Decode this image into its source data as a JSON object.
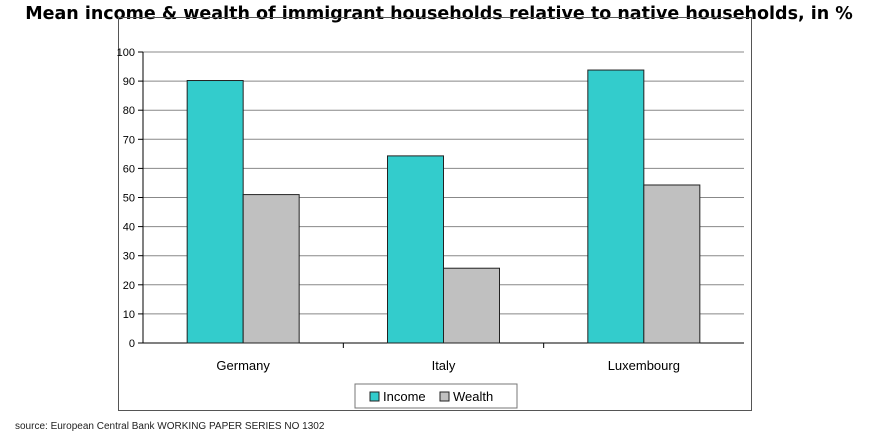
{
  "chart_data": {
    "type": "bar",
    "title": "Mean income & wealth of immigrant households relative to native households, in %",
    "categories": [
      "Germany",
      "Italy",
      "Luxembourg"
    ],
    "series": [
      {
        "name": "Income",
        "values": [
          90.2,
          64.3,
          93.8
        ],
        "color": "#33CCCC"
      },
      {
        "name": "Wealth",
        "values": [
          51.0,
          25.7,
          54.3
        ],
        "color": "#C0C0C0"
      }
    ],
    "ylim": [
      0,
      100
    ],
    "yticks": [
      0,
      10,
      20,
      30,
      40,
      50,
      60,
      70,
      80,
      90,
      100
    ],
    "grid": true,
    "legend": "bottom"
  },
  "source": "source: European Central Bank WORKING PAPER SERIES NO 1302"
}
